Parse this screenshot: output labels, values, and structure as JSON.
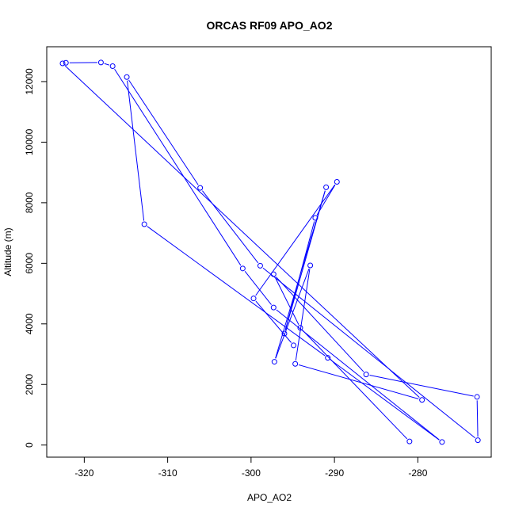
{
  "chart_data": {
    "type": "line",
    "title": "ORCAS RF09 APO_AO2",
    "xlabel": "APO_AO2",
    "ylabel": "Altitude (m)",
    "xlim": [
      -324.5,
      -271.2
    ],
    "ylim": [
      -400,
      13150
    ],
    "xticks": [
      -320,
      -310,
      -300,
      -290,
      -280
    ],
    "yticks": [
      0,
      2000,
      4000,
      6000,
      8000,
      10000,
      12000
    ],
    "grid": false,
    "series": [
      {
        "color": "#0000ff",
        "marker": "open-circle",
        "points": [
          {
            "x": -281.0,
            "y": 120
          },
          {
            "x": -294.1,
            "y": 3870
          },
          {
            "x": -297.3,
            "y": 5640
          },
          {
            "x": -286.2,
            "y": 2330
          },
          {
            "x": -272.9,
            "y": 1590
          },
          {
            "x": -272.8,
            "y": 160
          },
          {
            "x": -298.9,
            "y": 5920
          },
          {
            "x": -306.1,
            "y": 8490
          },
          {
            "x": -314.9,
            "y": 12150
          },
          {
            "x": -312.8,
            "y": 7290
          },
          {
            "x": -290.8,
            "y": 2880
          },
          {
            "x": -277.1,
            "y": 100
          },
          {
            "x": -297.3,
            "y": 4540
          },
          {
            "x": -301.0,
            "y": 5830
          },
          {
            "x": -316.6,
            "y": 12510
          },
          {
            "x": -318.0,
            "y": 12630
          },
          {
            "x": -322.2,
            "y": 12620
          },
          {
            "x": -322.6,
            "y": 12600
          },
          {
            "x": -279.5,
            "y": 1490
          },
          {
            "x": -294.7,
            "y": 2680
          },
          {
            "x": -292.9,
            "y": 5930
          },
          {
            "x": -297.2,
            "y": 2750
          },
          {
            "x": -291.0,
            "y": 8510
          },
          {
            "x": -296.0,
            "y": 3680
          },
          {
            "x": -292.3,
            "y": 7500
          },
          {
            "x": -289.7,
            "y": 8690
          },
          {
            "x": -299.7,
            "y": 4840
          },
          {
            "x": -294.9,
            "y": 3290
          }
        ]
      }
    ]
  }
}
